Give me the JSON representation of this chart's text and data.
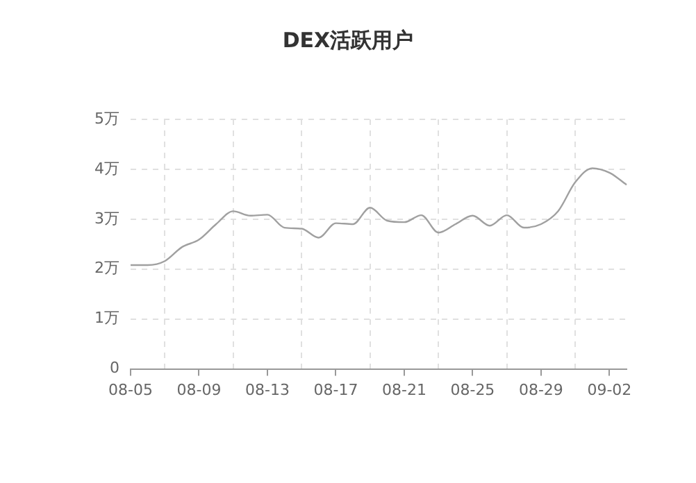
{
  "chart_data": {
    "type": "line",
    "title": "DEX活跃用户",
    "categories": [
      "08-05",
      null,
      null,
      null,
      "08-09",
      null,
      null,
      null,
      "08-13",
      null,
      null,
      null,
      "08-17",
      null,
      null,
      null,
      "08-21",
      null,
      null,
      null,
      "08-25",
      null,
      null,
      null,
      "08-29",
      null,
      null,
      null,
      "09-02",
      null
    ],
    "series": [
      {
        "color": "#a0a0a0",
        "values": [
          2.08,
          2.08,
          2.16,
          2.44,
          2.59,
          2.9,
          3.16,
          3.07,
          3.09,
          2.83,
          2.81,
          2.63,
          2.92,
          2.9,
          3.23,
          2.97,
          2.94,
          3.08,
          2.73,
          2.9,
          3.07,
          2.87,
          3.08,
          2.83,
          2.9,
          3.16,
          3.74,
          4.02,
          3.93,
          3.69
        ]
      }
    ],
    "ylim": [
      0,
      5
    ],
    "yticks": [
      0,
      {
        "value": 1,
        "label": "1万"
      },
      {
        "value": 2,
        "label": "2万"
      },
      {
        "value": 3,
        "label": "3万"
      },
      {
        "value": 4,
        "label": "4万"
      },
      {
        "value": 5,
        "label": "5万"
      }
    ],
    "grid": true,
    "marker": "none",
    "line_style": "solid"
  }
}
